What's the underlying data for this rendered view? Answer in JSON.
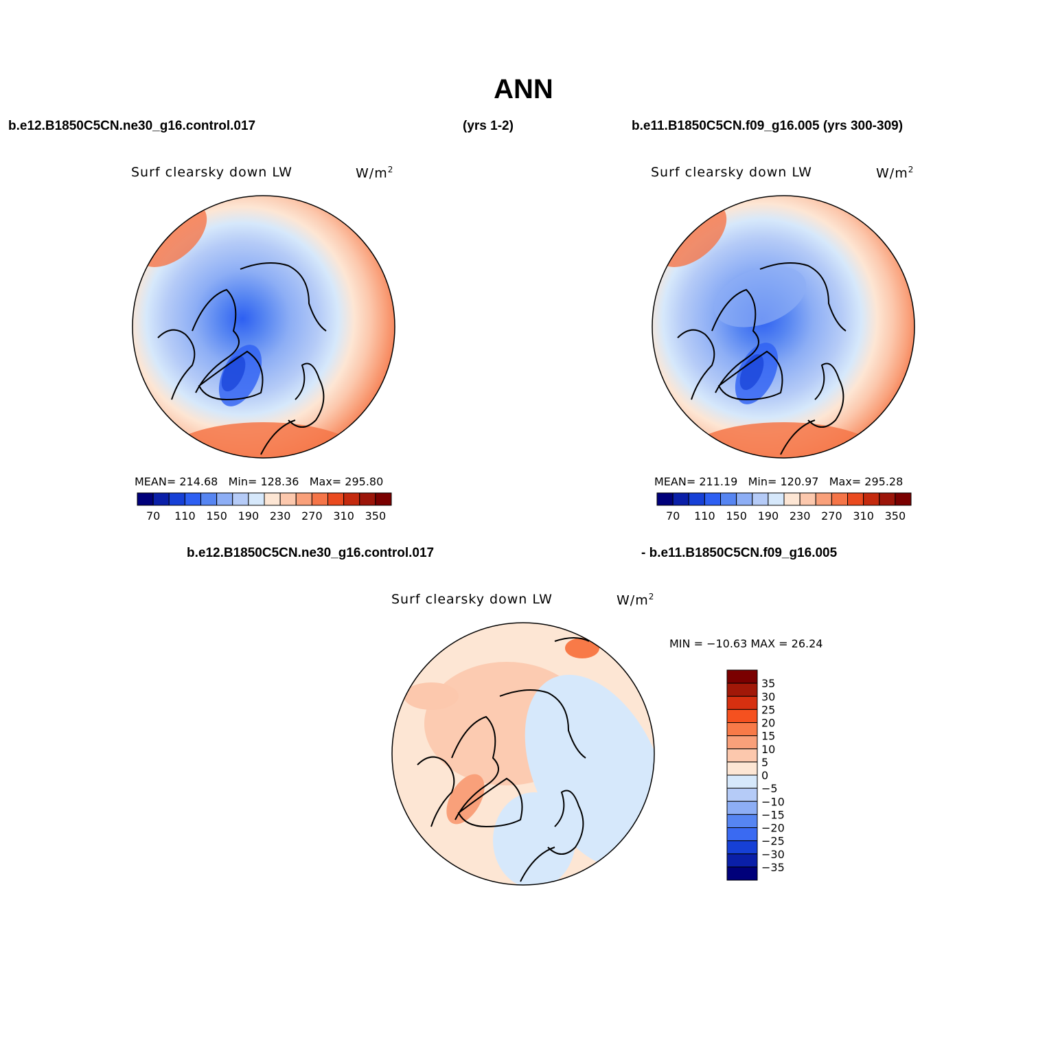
{
  "title": "ANN",
  "header": {
    "case_left": "b.e12.B1850C5CN.ne30_g16.control.017",
    "years_left": "(yrs 1-2)",
    "case_right": "b.e11.B1850C5CN.f09_g16.005 (yrs 300-309)"
  },
  "diff_header": {
    "left": "b.e12.B1850C5CN.ne30_g16.control.017",
    "right": "- b.e11.B1850C5CN.f09_g16.005"
  },
  "variable": "Surf clearsky down LW",
  "units": "W/m",
  "units_sup": "2",
  "panels": [
    {
      "mean_label": "MEAN=",
      "mean": "214.68",
      "min_label": "Min=",
      "min": "128.36",
      "max_label": "Max=",
      "max": "295.80"
    },
    {
      "mean_label": "MEAN=",
      "mean": "211.19",
      "min_label": "Min=",
      "min": "120.97",
      "max_label": "Max=",
      "max": "295.28"
    }
  ],
  "diff_stats": "MIN = −10.63 MAX =   26.24",
  "chart_data": [
    {
      "type": "heatmap",
      "projection": "north-polar-stereographic",
      "colorbar": {
        "orientation": "horizontal",
        "levels": [
          70,
          90,
          110,
          130,
          150,
          170,
          190,
          210,
          230,
          250,
          270,
          290,
          310,
          330,
          350
        ],
        "tick_labels": [
          "70",
          "110",
          "150",
          "190",
          "230",
          "270",
          "310",
          "350"
        ],
        "colors": [
          "#00007a",
          "#0a1fa8",
          "#1640d6",
          "#2d5ff2",
          "#5685f2",
          "#8daef5",
          "#b5cbf7",
          "#d6e8fb",
          "#fde6d4",
          "#fcc8ad",
          "#f9a07a",
          "#f57548",
          "#ea4a1f",
          "#c42a0e",
          "#9c1509",
          "#7a0000"
        ]
      }
    },
    {
      "type": "heatmap",
      "projection": "north-polar-stereographic",
      "colorbar": {
        "orientation": "horizontal",
        "levels": [
          70,
          90,
          110,
          130,
          150,
          170,
          190,
          210,
          230,
          250,
          270,
          290,
          310,
          330,
          350
        ],
        "tick_labels": [
          "70",
          "110",
          "150",
          "190",
          "230",
          "270",
          "310",
          "350"
        ],
        "colors": [
          "#00007a",
          "#0a1fa8",
          "#1640d6",
          "#2d5ff2",
          "#5685f2",
          "#8daef5",
          "#b5cbf7",
          "#d6e8fb",
          "#fde6d4",
          "#fcc8ad",
          "#f9a07a",
          "#f57548",
          "#ea4a1f",
          "#c42a0e",
          "#9c1509",
          "#7a0000"
        ]
      }
    },
    {
      "type": "heatmap",
      "projection": "north-polar-stereographic",
      "colorbar": {
        "orientation": "vertical",
        "levels": [
          35,
          30,
          25,
          20,
          15,
          10,
          5,
          0,
          -5,
          -10,
          -15,
          -20,
          -25,
          -30,
          -35
        ],
        "tick_labels": [
          "35",
          "30",
          "25",
          "20",
          "15",
          "10",
          "5",
          "0",
          "−5",
          "−10",
          "−15",
          "−20",
          "−25",
          "−30",
          "−35"
        ],
        "colors": [
          "#7a0000",
          "#a11808",
          "#d63010",
          "#f5511f",
          "#f87a48",
          "#f9a07a",
          "#fcc8ad",
          "#fde6d4",
          "#d6e8fb",
          "#b5cbf7",
          "#8daef5",
          "#5685f2",
          "#3a6af2",
          "#1640d6",
          "#0a1fa8",
          "#00007a"
        ]
      }
    }
  ]
}
